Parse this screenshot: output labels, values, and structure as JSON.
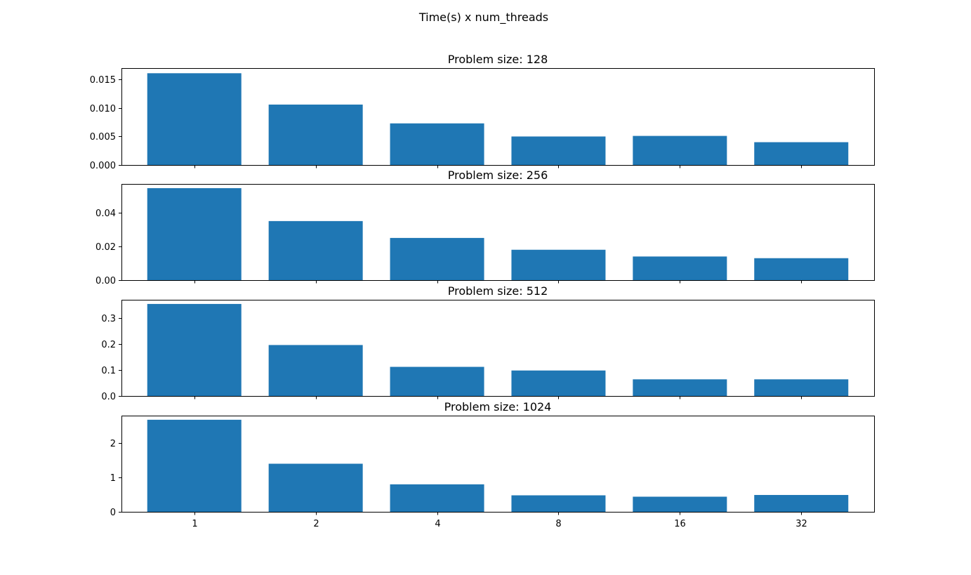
{
  "figure": {
    "suptitle": "Time(s) x num_threads"
  },
  "colors": {
    "bar": "#1f77b4",
    "axes": "#000000",
    "background": "#ffffff"
  },
  "chart_data": [
    {
      "type": "bar",
      "title": "Problem size: 128",
      "categories": [
        "1",
        "2",
        "4",
        "8",
        "16",
        "32"
      ],
      "values": [
        0.0161,
        0.0106,
        0.0073,
        0.005,
        0.0051,
        0.004
      ],
      "ylim": [
        0,
        0.017
      ],
      "yticks": [
        0.0,
        0.005,
        0.01,
        0.015
      ],
      "ytick_labels": [
        "0.000",
        "0.005",
        "0.010",
        "0.015"
      ],
      "show_xtick_labels": false
    },
    {
      "type": "bar",
      "title": "Problem size: 256",
      "categories": [
        "1",
        "2",
        "4",
        "8",
        "16",
        "32"
      ],
      "values": [
        0.0545,
        0.035,
        0.025,
        0.018,
        0.014,
        0.013
      ],
      "ylim": [
        0,
        0.057
      ],
      "yticks": [
        0.0,
        0.02,
        0.04
      ],
      "ytick_labels": [
        "0.00",
        "0.02",
        "0.04"
      ],
      "show_xtick_labels": false
    },
    {
      "type": "bar",
      "title": "Problem size: 512",
      "categories": [
        "1",
        "2",
        "4",
        "8",
        "16",
        "32"
      ],
      "values": [
        0.354,
        0.196,
        0.112,
        0.098,
        0.064,
        0.064
      ],
      "ylim": [
        0,
        0.37
      ],
      "yticks": [
        0.0,
        0.1,
        0.2,
        0.3
      ],
      "ytick_labels": [
        "0.0",
        "0.1",
        "0.2",
        "0.3"
      ],
      "show_xtick_labels": false
    },
    {
      "type": "bar",
      "title": "Problem size: 1024",
      "categories": [
        "1",
        "2",
        "4",
        "8",
        "16",
        "32"
      ],
      "values": [
        2.68,
        1.4,
        0.8,
        0.48,
        0.44,
        0.49
      ],
      "ylim": [
        0,
        2.8
      ],
      "yticks": [
        0,
        1,
        2
      ],
      "ytick_labels": [
        "0",
        "1",
        "2"
      ],
      "show_xtick_labels": true
    }
  ]
}
